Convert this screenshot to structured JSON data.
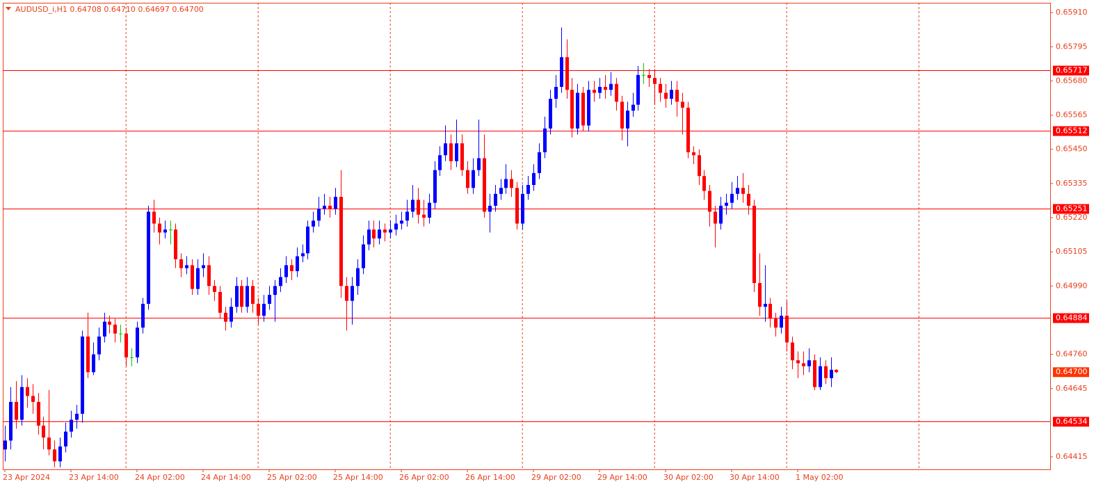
{
  "chart_data": {
    "type": "candlestick",
    "title": "AUDUSD_i,H1  0.64708 0.64710 0.64697 0.64700",
    "categories": [
      "23 Apr 2024",
      null,
      null,
      null,
      null,
      null,
      null,
      null,
      null,
      null,
      null,
      null,
      "23 Apr 14:00",
      null,
      null,
      null,
      null,
      null,
      null,
      null,
      null,
      null,
      null,
      null,
      "24 Apr 02:00",
      null,
      null,
      null,
      null,
      null,
      null,
      null,
      null,
      null,
      null,
      null,
      "24 Apr 14:00",
      null,
      null,
      null,
      null,
      null,
      null,
      null,
      null,
      null,
      null,
      null,
      "25 Apr 02:00",
      null,
      null,
      null,
      null,
      null,
      null,
      null,
      null,
      null,
      null,
      null,
      "25 Apr 14:00",
      null,
      null,
      null,
      null,
      null,
      null,
      null,
      null,
      null,
      null,
      null,
      "26 Apr 02:00",
      null,
      null,
      null,
      null,
      null,
      null,
      null,
      null,
      null,
      null,
      null,
      "26 Apr 14:00",
      null,
      null,
      null,
      null,
      null,
      null,
      null,
      null,
      null,
      null,
      null,
      "29 Apr 02:00",
      null,
      null,
      null,
      null,
      null,
      null,
      null,
      null,
      null,
      null,
      null,
      "29 Apr 14:00",
      null,
      null,
      null,
      null,
      null,
      null,
      null,
      null,
      null,
      null,
      null,
      "30 Apr 02:00",
      null,
      null,
      null,
      null,
      null,
      null,
      null,
      null,
      null,
      null,
      null,
      "30 Apr 14:00",
      null,
      null,
      null,
      null,
      null,
      null,
      null,
      null,
      null,
      null,
      null,
      "1 May 02:00",
      null,
      null,
      null,
      null,
      null,
      null,
      null
    ],
    "open": [
      0.6444,
      0.6447,
      0.646,
      0.6454,
      0.6465,
      0.6462,
      0.646,
      0.6452,
      0.6448,
      0.6444,
      0.644,
      0.6445,
      0.645,
      0.6454,
      0.6456,
      0.6482,
      0.647,
      0.6476,
      0.6482,
      0.6487,
      0.6486,
      0.6483,
      0.6483,
      0.6475,
      0.6475,
      0.6485,
      0.6493,
      0.6524,
      0.652,
      0.6517,
      0.6518,
      0.6518,
      0.6508,
      0.6505,
      0.6506,
      0.6498,
      0.6505,
      0.6506,
      0.6499,
      0.6497,
      0.649,
      0.6487,
      0.6492,
      0.6499,
      0.6492,
      0.6499,
      0.6493,
      0.6489,
      0.6493,
      0.6496,
      0.6499,
      0.6502,
      0.6506,
      0.6504,
      0.6509,
      0.651,
      0.6519,
      0.6521,
      0.6525,
      0.6526,
      0.6525,
      0.6529,
      0.6499,
      0.6494,
      0.6499,
      0.6505,
      0.6513,
      0.6518,
      0.6515,
      0.6518,
      0.6517,
      0.6518,
      0.652,
      0.6521,
      0.6524,
      0.6528,
      0.6523,
      0.6522,
      0.6527,
      0.6538,
      0.6543,
      0.6547,
      0.6541,
      0.6547,
      0.6538,
      0.6532,
      0.6538,
      0.6542,
      0.6524,
      0.6526,
      0.653,
      0.6532,
      0.6535,
      0.6532,
      0.652,
      0.653,
      0.6533,
      0.6537,
      0.6544,
      0.6552,
      0.6562,
      0.6566,
      0.6576,
      0.6565,
      0.6552,
      0.6564,
      0.6553,
      0.6565,
      0.6564,
      0.6566,
      0.6565,
      0.6567,
      0.6561,
      0.6552,
      0.6558,
      0.656,
      0.657,
      0.657,
      0.6569,
      0.6567,
      0.6564,
      0.6562,
      0.6565,
      0.6561,
      0.6559,
      0.6544,
      0.6543,
      0.6536,
      0.6531,
      0.6524,
      0.652,
      0.6526,
      0.6527,
      0.653,
      0.6532,
      0.653,
      0.6526,
      0.65,
      0.6492,
      0.6493,
      0.6488,
      0.6485,
      0.6489,
      0.648,
      0.6474,
      0.6473,
      0.6472,
      0.6474,
      0.6465,
      0.6472,
      0.6468,
      0.64708
    ],
    "high": [
      0.6452,
      0.6465,
      0.6467,
      0.6469,
      0.6468,
      0.6466,
      0.6463,
      0.6455,
      0.6464,
      0.6447,
      0.6448,
      0.6453,
      0.6457,
      0.6459,
      0.6484,
      0.649,
      0.648,
      0.6485,
      0.649,
      0.6489,
      0.6488,
      0.6486,
      0.6485,
      0.6478,
      0.6487,
      0.6495,
      0.6526,
      0.6528,
      0.6522,
      0.6521,
      0.6521,
      0.652,
      0.651,
      0.6509,
      0.6508,
      0.6508,
      0.651,
      0.6509,
      0.6501,
      0.6499,
      0.6492,
      0.6495,
      0.6502,
      0.6501,
      0.6502,
      0.6501,
      0.6495,
      0.6496,
      0.6499,
      0.6501,
      0.6505,
      0.6509,
      0.6508,
      0.6512,
      0.6513,
      0.6521,
      0.6524,
      0.6529,
      0.653,
      0.6529,
      0.6532,
      0.6538,
      0.6502,
      0.6502,
      0.6508,
      0.6516,
      0.6521,
      0.6521,
      0.6521,
      0.652,
      0.6521,
      0.6523,
      0.6524,
      0.6528,
      0.6533,
      0.6532,
      0.6528,
      0.653,
      0.6541,
      0.6546,
      0.6553,
      0.655,
      0.6555,
      0.655,
      0.6541,
      0.6542,
      0.6555,
      0.655,
      0.653,
      0.6533,
      0.6535,
      0.654,
      0.6538,
      0.6534,
      0.6533,
      0.6536,
      0.654,
      0.6547,
      0.6556,
      0.6565,
      0.657,
      0.6586,
      0.6582,
      0.6569,
      0.6567,
      0.6566,
      0.6568,
      0.6568,
      0.6569,
      0.657,
      0.6571,
      0.6569,
      0.6563,
      0.6561,
      0.6564,
      0.6573,
      0.6574,
      0.6572,
      0.6572,
      0.6569,
      0.6567,
      0.6568,
      0.6568,
      0.6564,
      0.6561,
      0.6546,
      0.6545,
      0.6538,
      0.6533,
      0.6526,
      0.6529,
      0.653,
      0.6534,
      0.6536,
      0.6537,
      0.6533,
      0.6528,
      0.651,
      0.6506,
      0.6495,
      0.649,
      0.6492,
      0.6494,
      0.6482,
      0.6477,
      0.6477,
      0.6478,
      0.6476,
      0.6475,
      0.6474,
      0.6475,
      0.6471
    ],
    "low": [
      0.644,
      0.6444,
      0.6451,
      0.6452,
      0.6458,
      0.6456,
      0.6449,
      0.6444,
      0.6442,
      0.6438,
      0.6438,
      0.6443,
      0.6448,
      0.6451,
      0.6453,
      0.6468,
      0.6469,
      0.6474,
      0.648,
      0.6483,
      0.648,
      0.648,
      0.6472,
      0.6472,
      0.6473,
      0.6483,
      0.6491,
      0.6517,
      0.6513,
      0.6515,
      0.6513,
      0.6505,
      0.6502,
      0.6503,
      0.6496,
      0.6496,
      0.6502,
      0.6496,
      0.6494,
      0.6488,
      0.6484,
      0.6485,
      0.649,
      0.649,
      0.649,
      0.649,
      0.6486,
      0.6487,
      0.6491,
      0.6487,
      0.6497,
      0.65,
      0.6501,
      0.6502,
      0.6507,
      0.6508,
      0.6517,
      0.6519,
      0.6523,
      0.6522,
      0.6523,
      0.6495,
      0.6484,
      0.6486,
      0.6496,
      0.6503,
      0.6511,
      0.6512,
      0.6513,
      0.6514,
      0.6515,
      0.6516,
      0.6518,
      0.6519,
      0.6522,
      0.652,
      0.6519,
      0.652,
      0.6525,
      0.6536,
      0.6541,
      0.6538,
      0.6539,
      0.6536,
      0.653,
      0.653,
      0.6536,
      0.6522,
      0.6517,
      0.6524,
      0.6528,
      0.653,
      0.6529,
      0.6518,
      0.6518,
      0.6528,
      0.6531,
      0.6535,
      0.6542,
      0.655,
      0.6559,
      0.6564,
      0.6562,
      0.6549,
      0.655,
      0.6551,
      0.6551,
      0.6561,
      0.6562,
      0.6562,
      0.6563,
      0.6558,
      0.6548,
      0.6546,
      0.6556,
      0.6558,
      0.6567,
      0.6566,
      0.656,
      0.6561,
      0.6559,
      0.656,
      0.6556,
      0.655,
      0.6542,
      0.654,
      0.6533,
      0.6528,
      0.6519,
      0.6512,
      0.6518,
      0.6523,
      0.6525,
      0.6528,
      0.6527,
      0.6523,
      0.6497,
      0.6489,
      0.6487,
      0.6485,
      0.6482,
      0.6483,
      0.6477,
      0.6471,
      0.6468,
      0.6469,
      0.647,
      0.6464,
      0.6464,
      0.6466,
      0.6465,
      0.64697
    ],
    "close": [
      0.6447,
      0.646,
      0.6454,
      0.6465,
      0.6462,
      0.646,
      0.6452,
      0.6448,
      0.6444,
      0.644,
      0.6445,
      0.645,
      0.6454,
      0.6456,
      0.6482,
      0.647,
      0.6476,
      0.6482,
      0.6487,
      0.6486,
      0.6483,
      0.6483,
      0.6475,
      0.6475,
      0.6485,
      0.6493,
      0.6524,
      0.652,
      0.6517,
      0.6518,
      0.6518,
      0.6508,
      0.6505,
      0.6506,
      0.6498,
      0.6505,
      0.6506,
      0.6499,
      0.6497,
      0.649,
      0.6487,
      0.6492,
      0.6499,
      0.6492,
      0.6499,
      0.6493,
      0.6489,
      0.6493,
      0.6496,
      0.6499,
      0.6502,
      0.6506,
      0.6504,
      0.6509,
      0.651,
      0.6519,
      0.6521,
      0.6525,
      0.6526,
      0.6525,
      0.6529,
      0.6499,
      0.6494,
      0.6499,
      0.6505,
      0.6513,
      0.6518,
      0.6515,
      0.6518,
      0.6517,
      0.6518,
      0.652,
      0.6521,
      0.6524,
      0.6528,
      0.6523,
      0.6522,
      0.6527,
      0.6538,
      0.6543,
      0.6547,
      0.6541,
      0.6547,
      0.6538,
      0.6532,
      0.6538,
      0.6542,
      0.6524,
      0.6526,
      0.653,
      0.6532,
      0.6535,
      0.6532,
      0.652,
      0.653,
      0.6533,
      0.6537,
      0.6544,
      0.6552,
      0.6562,
      0.6566,
      0.6576,
      0.6565,
      0.6552,
      0.6564,
      0.6553,
      0.6565,
      0.6564,
      0.6566,
      0.6565,
      0.6567,
      0.6561,
      0.6552,
      0.6558,
      0.656,
      0.657,
      0.657,
      0.6569,
      0.6567,
      0.6564,
      0.6562,
      0.6565,
      0.6561,
      0.6559,
      0.6544,
      0.6543,
      0.6536,
      0.6531,
      0.6524,
      0.652,
      0.6526,
      0.6527,
      0.653,
      0.6532,
      0.653,
      0.6526,
      0.65,
      0.6492,
      0.6493,
      0.6488,
      0.6485,
      0.6489,
      0.648,
      0.6474,
      0.6473,
      0.6472,
      0.6474,
      0.6465,
      0.6472,
      0.6468,
      0.64708,
      0.647
    ],
    "ylim": [
      0.64373,
      0.65943
    ],
    "yticks": [
      {
        "value": 0.6591,
        "label": "0.65910"
      },
      0.65795,
      {
        "value": 0.6568,
        "label": "0.65680"
      },
      0.65565,
      {
        "value": 0.6545,
        "label": "0.65450"
      },
      0.65335,
      {
        "value": 0.6522,
        "label": "0.65220"
      },
      0.65105,
      {
        "value": 0.6499,
        "label": "0.64990"
      },
      {
        "value": 0.6476,
        "label": "0.64760"
      },
      0.64645,
      0.64415
    ],
    "levels": [
      0.65717,
      0.65512,
      0.65251,
      0.64884,
      0.64534
    ],
    "current_price": {
      "value": 0.647,
      "label": "0.64700"
    },
    "up_color": "#0000ff",
    "down_color": "#ff0000",
    "doji_color": "#00c800",
    "level_color": "#ff0000",
    "price_label_color": "#ff3300",
    "grid": true
  }
}
